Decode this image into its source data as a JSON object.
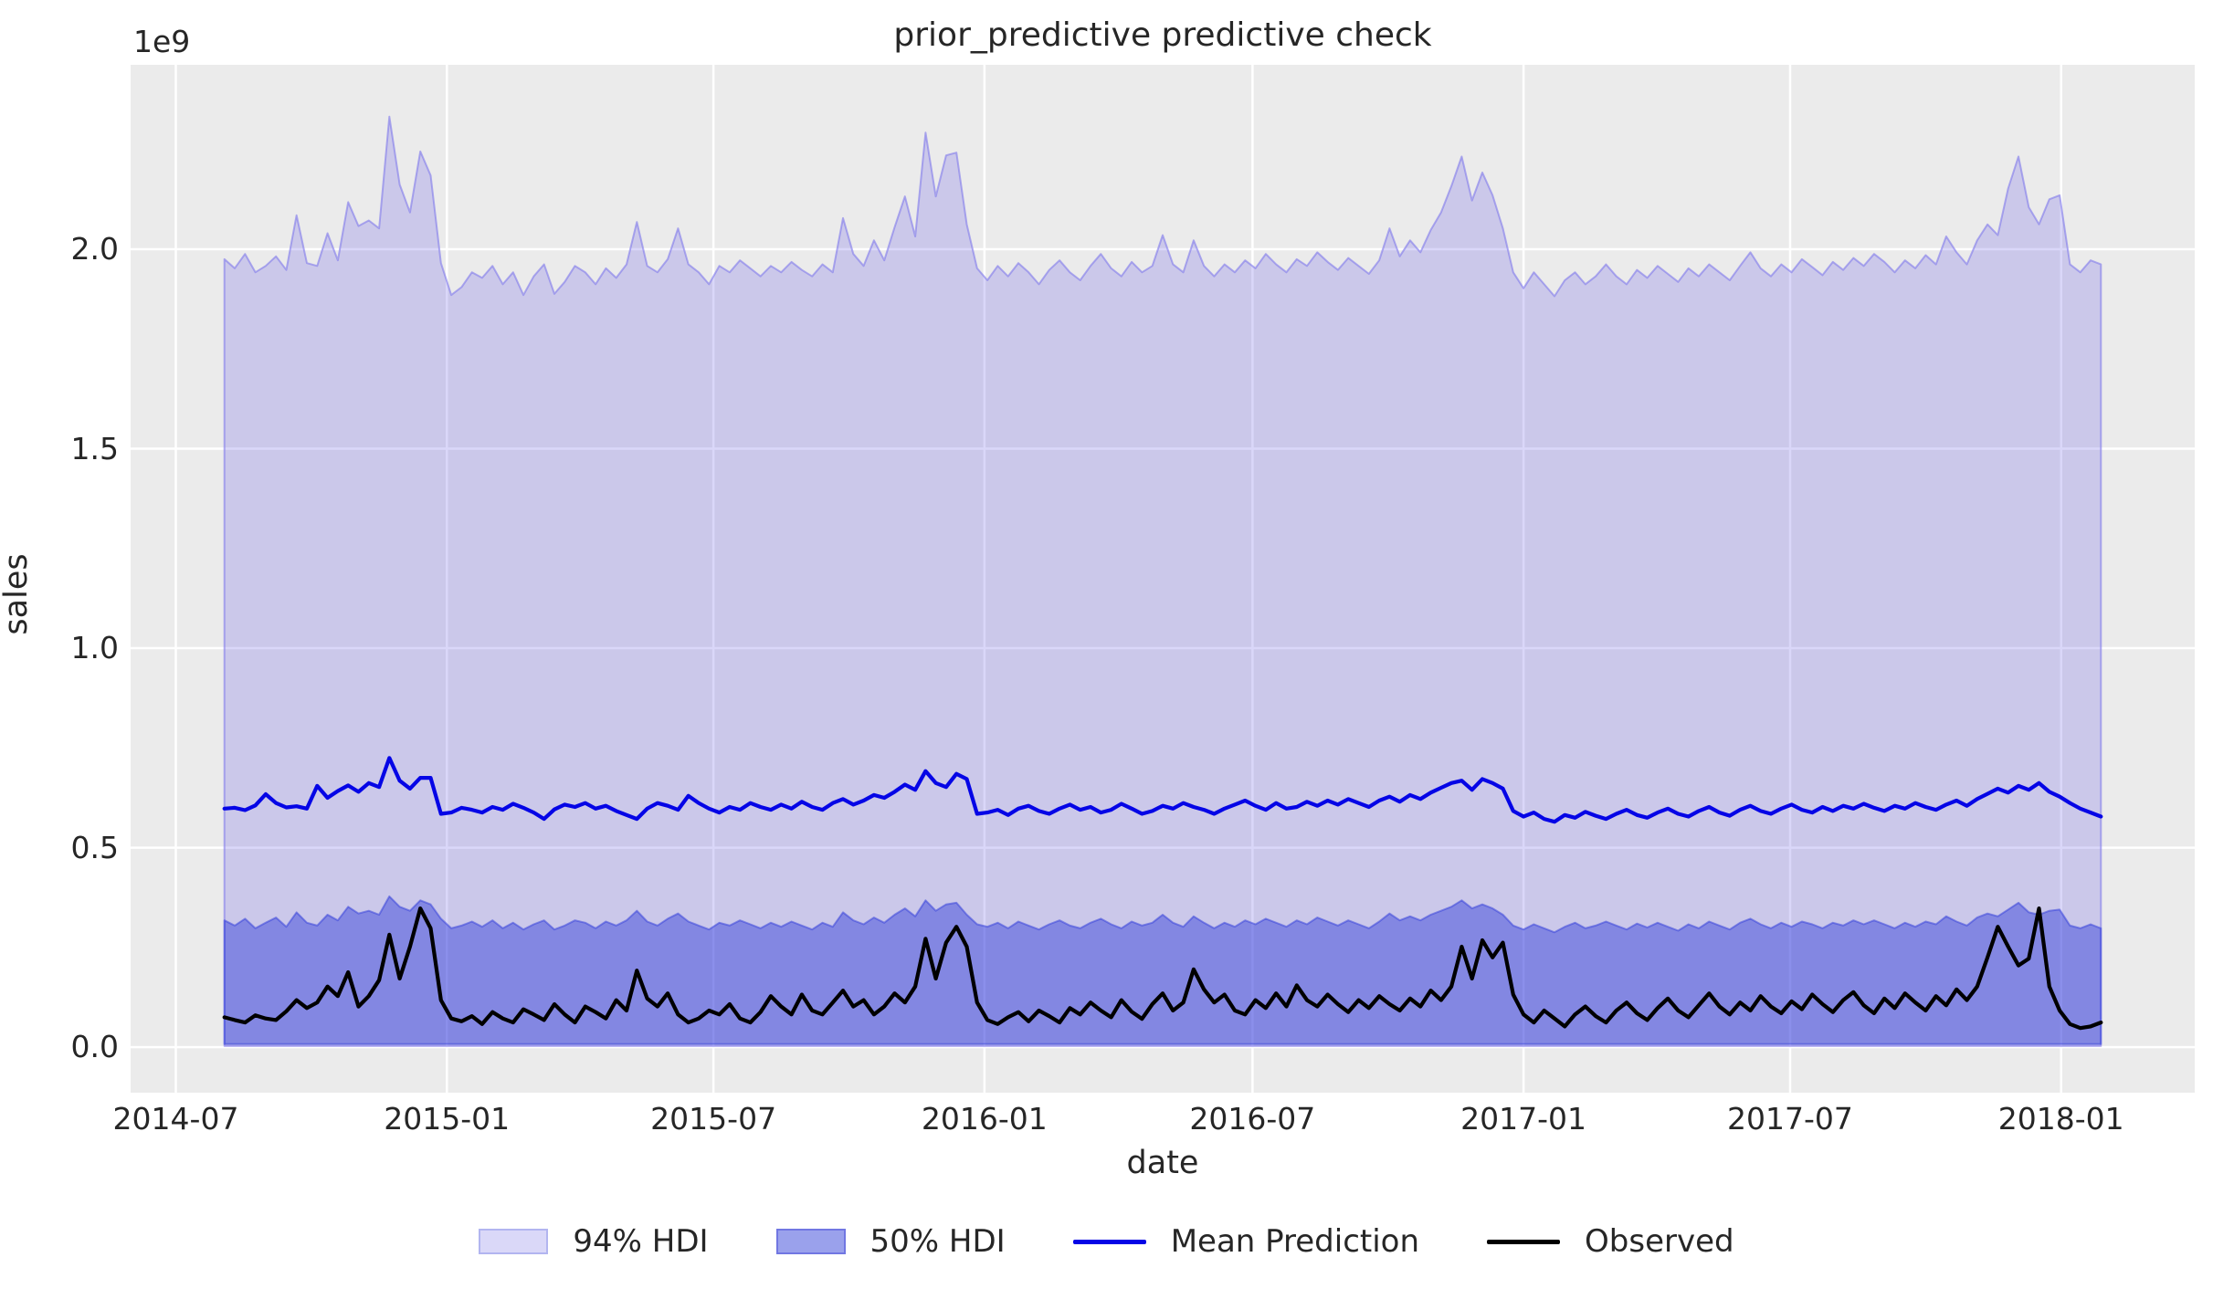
{
  "title": "prior_predictive predictive check",
  "axes": {
    "ylabel": "sales",
    "xlabel": "date",
    "y_offset_label": "1e9",
    "y_tick_labels": [
      "0.0",
      "0.5",
      "1.0",
      "1.5",
      "2.0"
    ],
    "x_tick_labels": [
      "2014-07",
      "2015-01",
      "2015-07",
      "2016-01",
      "2016-07",
      "2017-01",
      "2017-07",
      "2018-01"
    ]
  },
  "legend": {
    "items": [
      {
        "label": "94% HDI",
        "swatch": "patch-light"
      },
      {
        "label": "50% HDI",
        "swatch": "patch-dark"
      },
      {
        "label": "Mean Prediction",
        "swatch": "line-blue"
      },
      {
        "label": "Observed",
        "swatch": "line-black"
      }
    ]
  },
  "colors": {
    "figure_bg": "#ffffff",
    "plot_bg": "#ebebeb",
    "grid": "#ffffff",
    "hdi94_fill": "rgba(122,112,234,0.28)",
    "hdi94_edge": "rgba(126,120,235,0.60)",
    "hdi50_fill": "rgba(38,52,216,0.44)",
    "hdi50_edge": "rgba(48,60,218,0.50)",
    "mean_line": "#0505e6",
    "observed_line": "#000000",
    "text": "#262626",
    "legend_94_fill": "#dad8f8",
    "legend_94_edge": "#b2b5f0",
    "legend_50_fill": "#9aa1ec",
    "legend_50_edge": "#7177e2"
  },
  "chart_data": {
    "type": "line",
    "title": "prior_predictive predictive check",
    "xlabel": "date",
    "ylabel": "sales",
    "y_scale_factor": "1e9",
    "x_freq": "weekly",
    "n_points": 183,
    "x_start_date": "2014-08-03",
    "x_end_date": "2018-01-28",
    "x_tick_dates": [
      "2014-07-01",
      "2015-01-01",
      "2015-07-01",
      "2016-01-01",
      "2016-07-01",
      "2017-01-01",
      "2017-07-01",
      "2018-01-01"
    ],
    "y_ticks": [
      0.0,
      0.5,
      1.0,
      1.5,
      2.0
    ],
    "ylim": [
      -0.114,
      2.462
    ],
    "grid": true,
    "legend_position": "bottom-center",
    "series": [
      {
        "name": "94% HDI",
        "kind": "band",
        "lower_const": 0.003,
        "upper": [
          1.975,
          1.952,
          1.988,
          1.942,
          1.958,
          1.982,
          1.948,
          2.085,
          1.965,
          1.958,
          2.04,
          1.972,
          2.118,
          2.058,
          2.072,
          2.052,
          2.332,
          2.162,
          2.092,
          2.245,
          2.185,
          1.965,
          1.885,
          1.905,
          1.942,
          1.928,
          1.958,
          1.912,
          1.942,
          1.885,
          1.932,
          1.962,
          1.888,
          1.918,
          1.958,
          1.942,
          1.912,
          1.952,
          1.928,
          1.962,
          2.068,
          1.958,
          1.942,
          1.975,
          2.052,
          1.962,
          1.942,
          1.912,
          1.958,
          1.942,
          1.972,
          1.952,
          1.932,
          1.958,
          1.942,
          1.968,
          1.948,
          1.932,
          1.962,
          1.942,
          2.078,
          1.988,
          1.958,
          2.022,
          1.972,
          2.055,
          2.132,
          2.032,
          2.292,
          2.132,
          2.235,
          2.242,
          2.062,
          1.952,
          1.922,
          1.958,
          1.932,
          1.965,
          1.942,
          1.912,
          1.948,
          1.972,
          1.942,
          1.922,
          1.958,
          1.988,
          1.952,
          1.932,
          1.968,
          1.942,
          1.958,
          2.035,
          1.962,
          1.942,
          2.022,
          1.958,
          1.932,
          1.962,
          1.942,
          1.972,
          1.952,
          1.988,
          1.962,
          1.942,
          1.975,
          1.958,
          1.992,
          1.968,
          1.948,
          1.978,
          1.958,
          1.938,
          1.972,
          2.052,
          1.982,
          2.022,
          1.992,
          2.048,
          2.092,
          2.158,
          2.232,
          2.122,
          2.192,
          2.135,
          2.052,
          1.942,
          1.902,
          1.942,
          1.912,
          1.882,
          1.922,
          1.942,
          1.912,
          1.932,
          1.962,
          1.932,
          1.912,
          1.948,
          1.928,
          1.958,
          1.938,
          1.918,
          1.952,
          1.932,
          1.962,
          1.942,
          1.922,
          1.958,
          1.992,
          1.952,
          1.932,
          1.962,
          1.942,
          1.975,
          1.955,
          1.935,
          1.968,
          1.948,
          1.978,
          1.958,
          1.988,
          1.968,
          1.942,
          1.972,
          1.952,
          1.985,
          1.962,
          2.032,
          1.992,
          1.962,
          2.022,
          2.062,
          2.035,
          2.152,
          2.232,
          2.105,
          2.062,
          2.125,
          2.135,
          1.962,
          1.942,
          1.972,
          1.962
        ]
      },
      {
        "name": "50% HDI",
        "kind": "band",
        "lower_const": 0.008,
        "upper": [
          0.318,
          0.305,
          0.322,
          0.298,
          0.312,
          0.325,
          0.302,
          0.338,
          0.312,
          0.305,
          0.332,
          0.318,
          0.352,
          0.335,
          0.342,
          0.332,
          0.378,
          0.352,
          0.342,
          0.368,
          0.358,
          0.322,
          0.298,
          0.305,
          0.315,
          0.302,
          0.318,
          0.298,
          0.312,
          0.295,
          0.308,
          0.318,
          0.295,
          0.305,
          0.318,
          0.312,
          0.298,
          0.315,
          0.305,
          0.318,
          0.342,
          0.315,
          0.305,
          0.322,
          0.335,
          0.315,
          0.305,
          0.295,
          0.312,
          0.305,
          0.318,
          0.308,
          0.298,
          0.312,
          0.302,
          0.315,
          0.305,
          0.295,
          0.312,
          0.302,
          0.338,
          0.318,
          0.308,
          0.325,
          0.312,
          0.332,
          0.348,
          0.328,
          0.368,
          0.342,
          0.358,
          0.362,
          0.332,
          0.308,
          0.302,
          0.312,
          0.298,
          0.315,
          0.305,
          0.295,
          0.308,
          0.318,
          0.305,
          0.298,
          0.312,
          0.322,
          0.308,
          0.298,
          0.315,
          0.305,
          0.312,
          0.332,
          0.312,
          0.302,
          0.328,
          0.312,
          0.298,
          0.312,
          0.302,
          0.318,
          0.308,
          0.322,
          0.312,
          0.302,
          0.318,
          0.308,
          0.325,
          0.315,
          0.305,
          0.318,
          0.308,
          0.298,
          0.315,
          0.335,
          0.318,
          0.328,
          0.318,
          0.332,
          0.342,
          0.352,
          0.368,
          0.348,
          0.358,
          0.348,
          0.332,
          0.305,
          0.295,
          0.308,
          0.298,
          0.288,
          0.302,
          0.312,
          0.298,
          0.305,
          0.315,
          0.305,
          0.295,
          0.31,
          0.3,
          0.312,
          0.302,
          0.292,
          0.308,
          0.298,
          0.315,
          0.305,
          0.295,
          0.312,
          0.322,
          0.308,
          0.298,
          0.312,
          0.302,
          0.315,
          0.308,
          0.298,
          0.312,
          0.305,
          0.318,
          0.308,
          0.318,
          0.308,
          0.298,
          0.312,
          0.302,
          0.315,
          0.308,
          0.328,
          0.315,
          0.305,
          0.325,
          0.335,
          0.328,
          0.345,
          0.362,
          0.338,
          0.332,
          0.342,
          0.345,
          0.305,
          0.298,
          0.308,
          0.298
        ]
      },
      {
        "name": "Mean Prediction",
        "kind": "line",
        "values": [
          0.598,
          0.6,
          0.594,
          0.606,
          0.634,
          0.612,
          0.601,
          0.604,
          0.598,
          0.655,
          0.625,
          0.642,
          0.656,
          0.64,
          0.662,
          0.652,
          0.725,
          0.668,
          0.648,
          0.675,
          0.675,
          0.585,
          0.588,
          0.6,
          0.595,
          0.588,
          0.602,
          0.595,
          0.61,
          0.6,
          0.588,
          0.572,
          0.596,
          0.608,
          0.602,
          0.612,
          0.598,
          0.605,
          0.592,
          0.582,
          0.572,
          0.598,
          0.612,
          0.605,
          0.595,
          0.63,
          0.612,
          0.598,
          0.588,
          0.602,
          0.595,
          0.612,
          0.602,
          0.595,
          0.608,
          0.598,
          0.615,
          0.602,
          0.595,
          0.612,
          0.622,
          0.608,
          0.618,
          0.632,
          0.625,
          0.64,
          0.658,
          0.645,
          0.692,
          0.662,
          0.652,
          0.685,
          0.672,
          0.585,
          0.588,
          0.595,
          0.582,
          0.598,
          0.605,
          0.592,
          0.585,
          0.598,
          0.608,
          0.595,
          0.602,
          0.588,
          0.595,
          0.61,
          0.598,
          0.585,
          0.592,
          0.605,
          0.598,
          0.612,
          0.602,
          0.595,
          0.585,
          0.598,
          0.608,
          0.618,
          0.605,
          0.595,
          0.612,
          0.598,
          0.602,
          0.615,
          0.605,
          0.618,
          0.608,
          0.622,
          0.612,
          0.602,
          0.618,
          0.628,
          0.615,
          0.632,
          0.622,
          0.638,
          0.65,
          0.662,
          0.668,
          0.645,
          0.672,
          0.662,
          0.648,
          0.592,
          0.578,
          0.588,
          0.572,
          0.565,
          0.582,
          0.575,
          0.59,
          0.58,
          0.572,
          0.585,
          0.595,
          0.582,
          0.575,
          0.588,
          0.598,
          0.585,
          0.578,
          0.592,
          0.602,
          0.588,
          0.58,
          0.595,
          0.605,
          0.592,
          0.585,
          0.598,
          0.608,
          0.595,
          0.588,
          0.602,
          0.592,
          0.605,
          0.598,
          0.61,
          0.6,
          0.592,
          0.605,
          0.598,
          0.612,
          0.602,
          0.595,
          0.608,
          0.618,
          0.605,
          0.622,
          0.635,
          0.648,
          0.638,
          0.655,
          0.645,
          0.662,
          0.64,
          0.628,
          0.612,
          0.598,
          0.588,
          0.578
        ]
      },
      {
        "name": "Observed",
        "kind": "line",
        "values": [
          0.075,
          0.068,
          0.062,
          0.08,
          0.072,
          0.068,
          0.09,
          0.118,
          0.098,
          0.112,
          0.152,
          0.128,
          0.188,
          0.102,
          0.128,
          0.168,
          0.282,
          0.172,
          0.252,
          0.348,
          0.298,
          0.118,
          0.072,
          0.065,
          0.078,
          0.058,
          0.088,
          0.072,
          0.062,
          0.095,
          0.082,
          0.068,
          0.108,
          0.082,
          0.062,
          0.102,
          0.088,
          0.072,
          0.118,
          0.092,
          0.192,
          0.122,
          0.102,
          0.135,
          0.082,
          0.062,
          0.072,
          0.092,
          0.082,
          0.108,
          0.072,
          0.062,
          0.088,
          0.128,
          0.102,
          0.082,
          0.132,
          0.092,
          0.082,
          0.112,
          0.142,
          0.102,
          0.118,
          0.082,
          0.102,
          0.135,
          0.112,
          0.152,
          0.272,
          0.172,
          0.262,
          0.302,
          0.252,
          0.112,
          0.068,
          0.058,
          0.075,
          0.088,
          0.065,
          0.092,
          0.078,
          0.062,
          0.098,
          0.082,
          0.112,
          0.092,
          0.075,
          0.118,
          0.089,
          0.071,
          0.108,
          0.135,
          0.092,
          0.112,
          0.195,
          0.145,
          0.112,
          0.132,
          0.092,
          0.082,
          0.118,
          0.098,
          0.135,
          0.102,
          0.155,
          0.118,
          0.102,
          0.132,
          0.108,
          0.088,
          0.118,
          0.098,
          0.128,
          0.108,
          0.092,
          0.122,
          0.102,
          0.142,
          0.118,
          0.152,
          0.252,
          0.172,
          0.268,
          0.225,
          0.262,
          0.132,
          0.082,
          0.062,
          0.092,
          0.072,
          0.052,
          0.082,
          0.102,
          0.078,
          0.062,
          0.092,
          0.112,
          0.085,
          0.068,
          0.098,
          0.122,
          0.092,
          0.075,
          0.105,
          0.135,
          0.102,
          0.082,
          0.112,
          0.092,
          0.128,
          0.102,
          0.085,
          0.115,
          0.095,
          0.132,
          0.108,
          0.088,
          0.118,
          0.138,
          0.105,
          0.085,
          0.122,
          0.098,
          0.135,
          0.112,
          0.092,
          0.128,
          0.105,
          0.145,
          0.118,
          0.152,
          0.225,
          0.302,
          0.252,
          0.205,
          0.222,
          0.348,
          0.152,
          0.092,
          0.058,
          0.048,
          0.052,
          0.062
        ]
      }
    ]
  }
}
